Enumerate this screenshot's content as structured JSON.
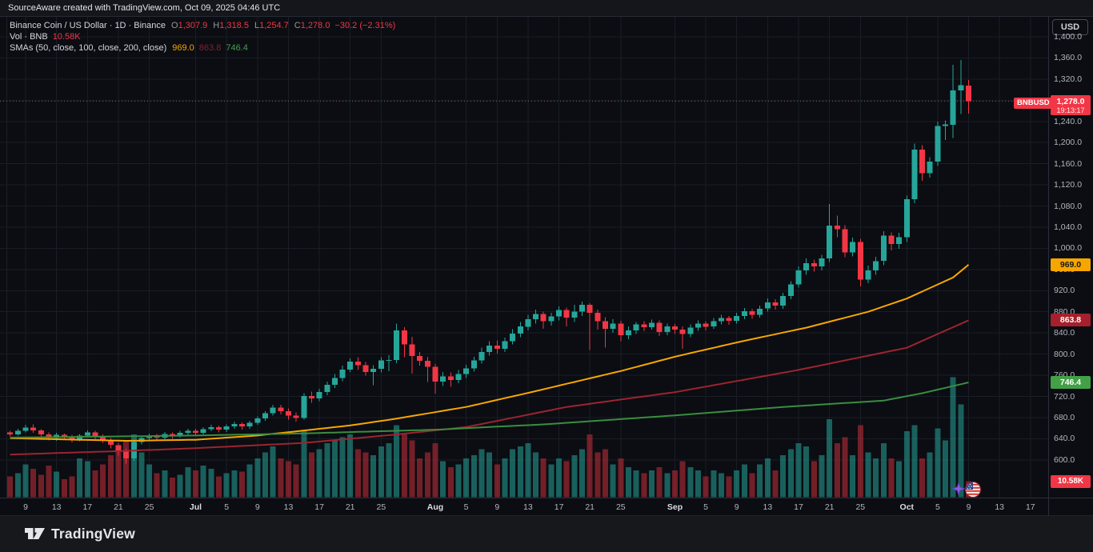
{
  "header": {
    "attribution": "SourceAware created with TradingView.com, Oct 09, 2025 04:46 UTC"
  },
  "legend": {
    "symbol_line": "Binance Coin / US Dollar · 1D · Binance",
    "ohlc": [
      {
        "label": "O",
        "value": "1,307.9"
      },
      {
        "label": "H",
        "value": "1,318.5"
      },
      {
        "label": "L",
        "value": "1,254.7"
      },
      {
        "label": "C",
        "value": "1,278.0"
      }
    ],
    "change": "−30.2 (−2.31%)",
    "volume_label": "Vol · BNB",
    "volume_value": "10.58K",
    "smas_label": "SMAs (50, close, 100, close, 200, close)",
    "sma50_value": "969.0",
    "sma100_value": "863.8",
    "sma200_value": "746.4"
  },
  "price_scale": {
    "currency_button": "USD",
    "labels": [
      1400,
      1360,
      1320,
      1280,
      1240,
      1200,
      1160,
      1120,
      1080,
      1040,
      1000,
      960,
      920,
      880,
      840,
      800,
      760,
      720,
      680,
      640,
      600
    ],
    "last_price_badge": {
      "symbol": "BNBUSD",
      "price": "1,278.0",
      "countdown": "19:13:17"
    },
    "sma50_badge": "969.0",
    "sma100_badge": "863.8",
    "sma200_badge": "746.4",
    "volume_badge": "10.58K"
  },
  "time_scale": {
    "ticks": [
      {
        "i": 2,
        "label": "9"
      },
      {
        "i": 6,
        "label": "13"
      },
      {
        "i": 10,
        "label": "17"
      },
      {
        "i": 14,
        "label": "21"
      },
      {
        "i": 18,
        "label": "25"
      },
      {
        "i": 24,
        "label": "Jul",
        "month": true
      },
      {
        "i": 28,
        "label": "5"
      },
      {
        "i": 32,
        "label": "9"
      },
      {
        "i": 36,
        "label": "13"
      },
      {
        "i": 40,
        "label": "17"
      },
      {
        "i": 44,
        "label": "21"
      },
      {
        "i": 48,
        "label": "25"
      },
      {
        "i": 55,
        "label": "Aug",
        "month": true
      },
      {
        "i": 59,
        "label": "5"
      },
      {
        "i": 63,
        "label": "9"
      },
      {
        "i": 67,
        "label": "13"
      },
      {
        "i": 71,
        "label": "17"
      },
      {
        "i": 75,
        "label": "21"
      },
      {
        "i": 79,
        "label": "25"
      },
      {
        "i": 86,
        "label": "Sep",
        "month": true
      },
      {
        "i": 90,
        "label": "5"
      },
      {
        "i": 94,
        "label": "9"
      },
      {
        "i": 98,
        "label": "13"
      },
      {
        "i": 102,
        "label": "17"
      },
      {
        "i": 106,
        "label": "21"
      },
      {
        "i": 110,
        "label": "25"
      },
      {
        "i": 116,
        "label": "Oct",
        "month": true
      },
      {
        "i": 120,
        "label": "5"
      },
      {
        "i": 124,
        "label": "9"
      },
      {
        "i": 128,
        "label": "13"
      },
      {
        "i": 132,
        "label": "17"
      }
    ]
  },
  "footer": {
    "logo_text": "TradingView"
  },
  "palette": {
    "up": "#26a69a",
    "down": "#f23645",
    "vol_up": "rgba(38,166,154,0.55)",
    "vol_down": "rgba(242,54,69,0.45)",
    "sma50": "#f7a600",
    "sma100": "#9c2430",
    "sma200": "#3a8d40",
    "grid": "#191d26",
    "frame": "#2a2e39",
    "axis_text": "#b2b5be",
    "last_line": "#f23645"
  },
  "chart_data": {
    "type": "candlestick",
    "title": "Binance Coin / US Dollar",
    "symbol": "BNBUSD",
    "exchange": "Binance",
    "interval": "1D",
    "date_range": "Jun 7 2025 – Oct 9 2025",
    "ylabel": "Price (USD)",
    "price_axis_visible_range": [
      530,
      1400
    ],
    "volume_axis_max_k": 80,
    "last_bar": {
      "open": 1307.9,
      "high": 1318.5,
      "low": 1254.7,
      "close": 1278.0,
      "change": -30.2,
      "change_pct": -2.31,
      "volume": "10.58K"
    },
    "candles_format": [
      "date",
      "open",
      "high",
      "low",
      "close",
      "volume_k"
    ],
    "candles": [
      [
        "06-07",
        652,
        655,
        644,
        648,
        14
      ],
      [
        "06-08",
        648,
        659,
        646,
        655,
        16
      ],
      [
        "06-09",
        655,
        666,
        652,
        661,
        22
      ],
      [
        "06-10",
        661,
        667,
        651,
        656,
        19
      ],
      [
        "06-11",
        656,
        658,
        644,
        648,
        15
      ],
      [
        "06-12",
        648,
        652,
        637,
        641,
        21
      ],
      [
        "06-13",
        641,
        651,
        636,
        647,
        17
      ],
      [
        "06-14",
        647,
        650,
        638,
        643,
        12
      ],
      [
        "06-15",
        643,
        647,
        633,
        638,
        14
      ],
      [
        "06-16",
        638,
        649,
        635,
        646,
        26
      ],
      [
        "06-17",
        646,
        656,
        643,
        652,
        24
      ],
      [
        "06-18",
        652,
        655,
        639,
        644,
        18
      ],
      [
        "06-19",
        644,
        648,
        632,
        637,
        22
      ],
      [
        "06-20",
        637,
        641,
        622,
        628,
        28
      ],
      [
        "06-21",
        628,
        632,
        608,
        617,
        32
      ],
      [
        "06-22",
        617,
        621,
        593,
        603,
        38
      ],
      [
        "06-23",
        603,
        638,
        598,
        634,
        42
      ],
      [
        "06-24",
        634,
        646,
        629,
        641,
        30
      ],
      [
        "06-25",
        641,
        650,
        636,
        645,
        22
      ],
      [
        "06-26",
        645,
        649,
        637,
        642,
        16
      ],
      [
        "06-27",
        642,
        653,
        639,
        649,
        18
      ],
      [
        "06-28",
        649,
        652,
        640,
        645,
        13
      ],
      [
        "06-29",
        645,
        655,
        642,
        651,
        15
      ],
      [
        "06-30",
        651,
        659,
        647,
        655,
        20
      ],
      [
        "07-01",
        655,
        659,
        646,
        651,
        18
      ],
      [
        "07-02",
        651,
        662,
        648,
        658,
        21
      ],
      [
        "07-03",
        658,
        666,
        654,
        662,
        19
      ],
      [
        "07-04",
        662,
        665,
        652,
        657,
        14
      ],
      [
        "07-05",
        657,
        667,
        653,
        663,
        16
      ],
      [
        "07-06",
        663,
        672,
        659,
        668,
        18
      ],
      [
        "07-07",
        668,
        671,
        657,
        663,
        17
      ],
      [
        "07-08",
        663,
        674,
        659,
        670,
        22
      ],
      [
        "07-09",
        670,
        682,
        666,
        678,
        26
      ],
      [
        "07-10",
        678,
        692,
        674,
        688,
        30
      ],
      [
        "07-11",
        688,
        704,
        684,
        699,
        34
      ],
      [
        "07-12",
        699,
        704,
        686,
        692,
        26
      ],
      [
        "07-13",
        692,
        697,
        676,
        684,
        24
      ],
      [
        "07-14",
        684,
        690,
        672,
        679,
        22
      ],
      [
        "07-15",
        679,
        726,
        676,
        721,
        44
      ],
      [
        "07-16",
        721,
        729,
        708,
        716,
        30
      ],
      [
        "07-17",
        716,
        734,
        711,
        728,
        32
      ],
      [
        "07-18",
        728,
        748,
        722,
        742,
        36
      ],
      [
        "07-19",
        742,
        762,
        736,
        755,
        38
      ],
      [
        "07-20",
        755,
        778,
        749,
        771,
        40
      ],
      [
        "07-21",
        771,
        792,
        766,
        786,
        42
      ],
      [
        "07-22",
        786,
        794,
        770,
        779,
        32
      ],
      [
        "07-23",
        779,
        785,
        759,
        766,
        30
      ],
      [
        "07-24",
        766,
        779,
        741,
        772,
        28
      ],
      [
        "07-25",
        772,
        794,
        765,
        788,
        34
      ],
      [
        "07-26",
        788,
        798,
        768,
        789,
        36
      ],
      [
        "07-27",
        789,
        858,
        783,
        845,
        48
      ],
      [
        "07-28",
        845,
        851,
        794,
        818,
        42
      ],
      [
        "07-29",
        818,
        833,
        763,
        796,
        38
      ],
      [
        "07-30",
        796,
        804,
        778,
        787,
        26
      ],
      [
        "07-31",
        787,
        795,
        747,
        776,
        30
      ],
      [
        "08-01",
        776,
        781,
        725,
        748,
        36
      ],
      [
        "08-02",
        748,
        766,
        740,
        758,
        24
      ],
      [
        "08-03",
        758,
        765,
        738,
        751,
        20
      ],
      [
        "08-04",
        751,
        770,
        745,
        762,
        22
      ],
      [
        "08-05",
        762,
        780,
        755,
        773,
        26
      ],
      [
        "08-06",
        773,
        795,
        767,
        788,
        28
      ],
      [
        "08-07",
        788,
        812,
        782,
        804,
        32
      ],
      [
        "08-08",
        804,
        824,
        797,
        816,
        30
      ],
      [
        "08-09",
        816,
        826,
        801,
        810,
        22
      ],
      [
        "08-10",
        810,
        831,
        804,
        824,
        26
      ],
      [
        "08-11",
        824,
        847,
        818,
        839,
        32
      ],
      [
        "08-12",
        839,
        861,
        832,
        852,
        34
      ],
      [
        "08-13",
        852,
        874,
        845,
        866,
        36
      ],
      [
        "08-14",
        866,
        884,
        858,
        876,
        30
      ],
      [
        "08-15",
        876,
        880,
        848,
        862,
        26
      ],
      [
        "08-16",
        862,
        878,
        854,
        871,
        22
      ],
      [
        "08-17",
        871,
        890,
        864,
        883,
        26
      ],
      [
        "08-18",
        883,
        888,
        852,
        869,
        24
      ],
      [
        "08-19",
        869,
        893,
        861,
        880,
        28
      ],
      [
        "08-20",
        880,
        899,
        872,
        893,
        32
      ],
      [
        "08-21",
        893,
        896,
        808,
        878,
        42
      ],
      [
        "08-22",
        878,
        884,
        846,
        862,
        30
      ],
      [
        "08-23",
        862,
        870,
        812,
        848,
        32
      ],
      [
        "08-24",
        848,
        866,
        840,
        858,
        22
      ],
      [
        "08-25",
        858,
        863,
        824,
        836,
        26
      ],
      [
        "08-26",
        836,
        852,
        828,
        845,
        20
      ],
      [
        "08-27",
        845,
        861,
        838,
        856,
        18
      ],
      [
        "08-28",
        856,
        862,
        843,
        851,
        16
      ],
      [
        "08-29",
        851,
        865,
        846,
        859,
        18
      ],
      [
        "08-30",
        859,
        864,
        834,
        842,
        20
      ],
      [
        "08-31",
        842,
        858,
        836,
        852,
        16
      ],
      [
        "09-01",
        852,
        857,
        838,
        846,
        18
      ],
      [
        "09-02",
        846,
        852,
        810,
        838,
        24
      ],
      [
        "09-03",
        838,
        856,
        832,
        850,
        20
      ],
      [
        "09-04",
        850,
        864,
        844,
        858,
        18
      ],
      [
        "09-05",
        858,
        862,
        845,
        852,
        14
      ],
      [
        "09-06",
        852,
        868,
        848,
        862,
        18
      ],
      [
        "09-07",
        862,
        874,
        856,
        868,
        16
      ],
      [
        "09-08",
        868,
        872,
        855,
        863,
        14
      ],
      [
        "09-09",
        863,
        878,
        858,
        872,
        18
      ],
      [
        "09-10",
        872,
        887,
        866,
        881,
        22
      ],
      [
        "09-11",
        881,
        886,
        867,
        874,
        16
      ],
      [
        "09-12",
        874,
        892,
        869,
        886,
        22
      ],
      [
        "09-13",
        886,
        905,
        880,
        898,
        26
      ],
      [
        "09-14",
        898,
        904,
        884,
        892,
        18
      ],
      [
        "09-15",
        892,
        916,
        886,
        910,
        28
      ],
      [
        "09-16",
        910,
        938,
        904,
        932,
        32
      ],
      [
        "09-17",
        932,
        966,
        926,
        958,
        36
      ],
      [
        "09-18",
        958,
        981,
        950,
        972,
        34
      ],
      [
        "09-19",
        972,
        979,
        956,
        966,
        24
      ],
      [
        "09-20",
        966,
        988,
        958,
        981,
        28
      ],
      [
        "09-21",
        981,
        1084,
        974,
        1043,
        52
      ],
      [
        "09-22",
        1043,
        1062,
        1021,
        1036,
        36
      ],
      [
        "09-23",
        1036,
        1044,
        983,
        992,
        40
      ],
      [
        "09-24",
        992,
        1020,
        985,
        1012,
        28
      ],
      [
        "09-25",
        1012,
        1018,
        928,
        941,
        48
      ],
      [
        "09-26",
        941,
        967,
        934,
        958,
        30
      ],
      [
        "09-27",
        958,
        984,
        950,
        976,
        26
      ],
      [
        "09-28",
        976,
        1032,
        968,
        1024,
        36
      ],
      [
        "09-29",
        1024,
        1030,
        996,
        1008,
        26
      ],
      [
        "09-30",
        1008,
        1029,
        999,
        1021,
        24
      ],
      [
        "10-01",
        1021,
        1100,
        1012,
        1093,
        44
      ],
      [
        "10-02",
        1093,
        1198,
        1085,
        1187,
        48
      ],
      [
        "10-03",
        1187,
        1195,
        1128,
        1142,
        26
      ],
      [
        "10-04",
        1142,
        1172,
        1134,
        1164,
        30
      ],
      [
        "10-05",
        1164,
        1240,
        1156,
        1231,
        46
      ],
      [
        "10-06",
        1231,
        1242,
        1205,
        1234,
        38
      ],
      [
        "10-07",
        1234,
        1347,
        1209,
        1299,
        80
      ],
      [
        "10-08",
        1299,
        1356,
        1254,
        1308.2,
        62
      ],
      [
        "10-09",
        1307.9,
        1318.5,
        1254.7,
        1278.0,
        10.58
      ]
    ],
    "overlays": [
      {
        "name": "SMA 50",
        "last": 969.0,
        "points": [
          [
            0,
            641
          ],
          [
            9,
            638
          ],
          [
            15,
            636
          ],
          [
            24,
            638
          ],
          [
            32,
            646
          ],
          [
            44,
            665
          ],
          [
            50,
            678
          ],
          [
            59,
            700
          ],
          [
            68,
            730
          ],
          [
            79,
            768
          ],
          [
            86,
            795
          ],
          [
            94,
            822
          ],
          [
            103,
            850
          ],
          [
            111,
            880
          ],
          [
            116,
            905
          ],
          [
            122,
            945
          ],
          [
            124,
            969
          ]
        ]
      },
      {
        "name": "SMA 100",
        "last": 863.8,
        "points": [
          [
            0,
            610
          ],
          [
            15,
            617
          ],
          [
            24,
            622
          ],
          [
            38,
            632
          ],
          [
            50,
            648
          ],
          [
            59,
            662
          ],
          [
            72,
            700
          ],
          [
            86,
            728
          ],
          [
            102,
            770
          ],
          [
            116,
            812
          ],
          [
            120,
            838
          ],
          [
            124,
            863.8
          ]
        ]
      },
      {
        "name": "SMA 200",
        "last": 746.4,
        "points": [
          [
            0,
            642
          ],
          [
            24,
            646
          ],
          [
            38,
            650
          ],
          [
            55,
            657
          ],
          [
            69,
            667
          ],
          [
            86,
            684
          ],
          [
            100,
            700
          ],
          [
            113,
            712
          ],
          [
            118,
            726
          ],
          [
            124,
            746.4
          ]
        ]
      }
    ],
    "annotations": {
      "last_price_line": 1278.0,
      "stickers": [
        "purple-sparkle-emoji",
        "us-flag-emoji"
      ]
    }
  }
}
